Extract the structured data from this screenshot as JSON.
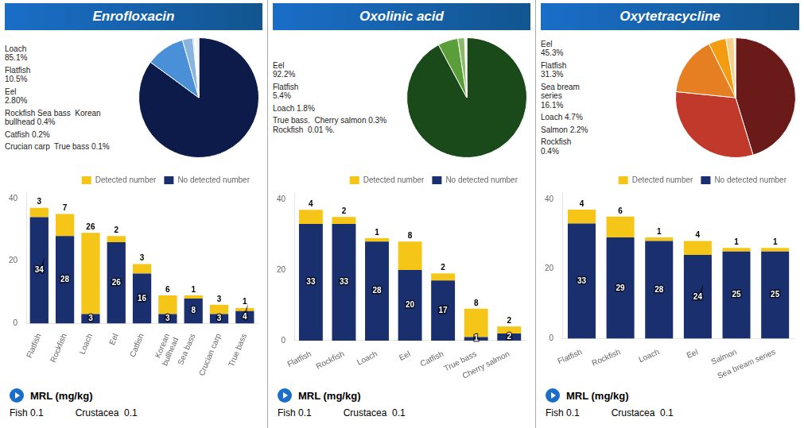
{
  "chart_data": [
    {
      "type": "pie",
      "title": "Enrofloxacin",
      "values": [
        85.1,
        10.5,
        2.8,
        0.4,
        0.2,
        0.1,
        0.1,
        0.8
      ],
      "colors": [
        "#0d1b4b",
        "#4a90d9",
        "#8ab4e0",
        "#b8cfe8",
        "#ccdaf0",
        "#dae5f5",
        "#e5edf8",
        "#eef3fb"
      ],
      "annotations": [
        "Loach\n85.1%",
        "Flatfish\n10.5%",
        "Eel\n2.80%",
        "Rockfish Sea bass  Korean bullhead 0.4%",
        "Catfish 0.2%",
        "Crucian carp  True bass 0.1%"
      ]
    },
    {
      "type": "bar",
      "stacked": true,
      "categories": [
        "Flatfish",
        "Rockfish",
        "Loach",
        "Eel",
        "Catfish",
        "Korean\nbullhead",
        "Sea bass",
        "Crucian carp",
        "True bass"
      ],
      "series": [
        {
          "name": "No detected number",
          "color": "#1a2f6e",
          "values": [
            34,
            28,
            3,
            26,
            16,
            3,
            8,
            3,
            4
          ]
        },
        {
          "name": "Detected number",
          "color": "#f5c518",
          "values": [
            3,
            7,
            26,
            2,
            3,
            6,
            1,
            3,
            1
          ]
        }
      ],
      "ylim": [
        0,
        42
      ],
      "yticks": [
        0,
        20,
        40
      ],
      "grid": false,
      "legend": "upper right",
      "data_labels": true,
      "annotations": [
        "MRL (mg/kg)",
        "Fish 0.1",
        "Crustacea  0.1"
      ]
    },
    {
      "type": "pie",
      "title": "Oxolinic acid",
      "values": [
        92.2,
        5.4,
        1.8,
        0.3,
        0.01,
        0.29
      ],
      "colors": [
        "#1a4a1a",
        "#5a9e3a",
        "#8aba6a",
        "#b0d090",
        "#d0e8b0",
        "#e8f4d0"
      ],
      "annotations": [
        "Eel\n92.2%",
        "Flatfish\n5.4%",
        "Loach 1.8%",
        "True bass.  Cherry salmon 0.3%\nRockfish  0.01 %."
      ]
    },
    {
      "type": "bar",
      "stacked": true,
      "categories": [
        "Flatfish",
        "Rockfish",
        "Loach",
        "Eel",
        "Catfish",
        "True bass",
        "Cherry salmon"
      ],
      "series": [
        {
          "name": "No detected number",
          "color": "#1a2f6e",
          "values": [
            33,
            33,
            28,
            20,
            17,
            1,
            2
          ]
        },
        {
          "name": "Detected number",
          "color": "#f5c518",
          "values": [
            4,
            2,
            1,
            8,
            2,
            8,
            2
          ]
        }
      ],
      "ylim": [
        0,
        42
      ],
      "yticks": [
        0,
        20,
        40
      ],
      "grid": false,
      "legend": "upper right",
      "data_labels": true,
      "annotations": [
        "MRL (mg/kg)",
        "Fish 0.1",
        "Crustacea  0.1"
      ]
    },
    {
      "type": "pie",
      "title": "Oxytetracycline",
      "values": [
        45.3,
        31.3,
        16.1,
        4.7,
        2.2,
        0.4
      ],
      "colors": [
        "#6b1a1a",
        "#c0392b",
        "#e67e22",
        "#f39c12",
        "#f5d08a",
        "#f9e4c0"
      ],
      "annotations": [
        "Eel\n45.3%",
        "Flatfish\n31.3%",
        "Sea bream\nseries\n16.1%",
        "Loach 4.7%",
        "Salmon 2.2%",
        "Rockfish\n0.4%"
      ]
    },
    {
      "type": "bar",
      "stacked": true,
      "categories": [
        "Flatfish",
        "Rockfish",
        "Loach",
        "Eel",
        "Salmon",
        "Sea bream series"
      ],
      "series": [
        {
          "name": "No detected number",
          "color": "#1a2f6e",
          "values": [
            33,
            29,
            28,
            24,
            25,
            25
          ]
        },
        {
          "name": "Detected number",
          "color": "#f5c518",
          "values": [
            4,
            6,
            1,
            4,
            1,
            1
          ]
        }
      ],
      "ylim": [
        0,
        42
      ],
      "yticks": [
        0,
        20,
        40
      ],
      "grid": false,
      "legend": "upper right",
      "data_labels": true,
      "annotations": [
        "MRL (mg/kg)",
        "Fish 0.1",
        "Crustacea  0.1"
      ]
    }
  ]
}
